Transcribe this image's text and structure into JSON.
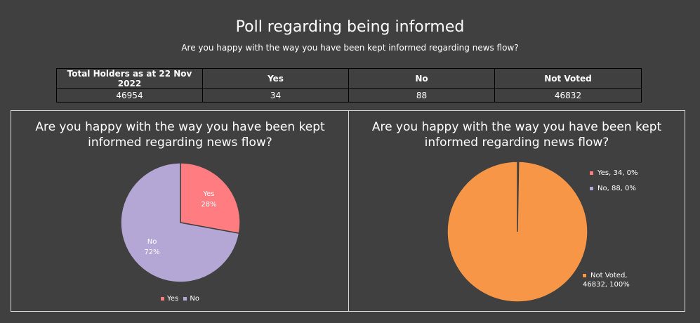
{
  "header": {
    "title": "Poll regarding being informed",
    "subtitle": "Are you happy with the way you have been kept informed regarding news flow?"
  },
  "table": {
    "headers": [
      "Total Holders as at 22 Nov 2022",
      "Yes",
      "No",
      "Not Voted"
    ],
    "values": [
      "46954",
      "34",
      "88",
      "46832"
    ]
  },
  "colors": {
    "yes": "#ff7c80",
    "no": "#b4a7d6",
    "not_voted": "#f79646",
    "background": "#404040"
  },
  "chart_data": [
    {
      "type": "pie",
      "title": "Are you happy with the way you have been kept informed regarding news flow?",
      "categories": [
        "Yes",
        "No"
      ],
      "values": [
        34,
        88
      ],
      "data_labels": [
        {
          "name": "Yes",
          "value": "28%"
        },
        {
          "name": "No",
          "value": "72%"
        }
      ],
      "legend": "bottom"
    },
    {
      "type": "pie",
      "title": "Are you happy with the way you have been kept informed regarding news flow?",
      "categories": [
        "Yes",
        "No",
        "Not Voted"
      ],
      "values": [
        34,
        88,
        46832
      ],
      "data_labels": [
        "Yes, 34, 0%",
        "No, 88, 0%",
        "Not Voted, 46832, 100%"
      ],
      "legend": "right"
    }
  ]
}
